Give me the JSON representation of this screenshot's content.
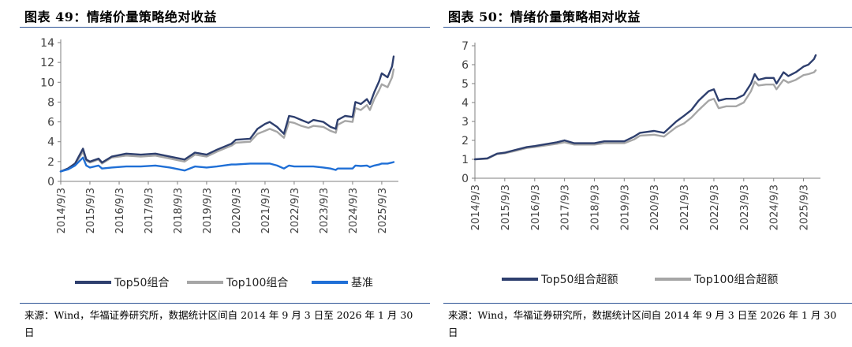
{
  "charts": [
    {
      "title": "图表 49：情绪价量策略绝对收益",
      "source": "来源：Wind，华福证券研究所，数据统计区间自 2014 年 9 月 3 日至 2026 年 1 月 30 日"
    },
    {
      "title": "图表 50：情绪价量策略相对收益",
      "source": "来源：Wind，华福证券研究所，数据统计区间自 2014 年 9 月 3 日至 2026 年 1 月 30 日"
    }
  ],
  "chart_data": [
    {
      "type": "line",
      "title": "图表 49：情绪价量策略绝对收益",
      "xlabel": "",
      "ylabel": "",
      "ylim": [
        0,
        14
      ],
      "yticks": [
        "0",
        "2",
        "4",
        "6",
        "8",
        "10",
        "12",
        "14"
      ],
      "xlim": [
        "2014-09-03",
        "2026-01-30"
      ],
      "xticks": [
        "2014/9/3",
        "2015/9/3",
        "2016/9/3",
        "2017/9/3",
        "2018/9/3",
        "2019/9/3",
        "2020/9/3",
        "2021/9/3",
        "2022/9/3",
        "2023/9/3",
        "2024/9/3",
        "2025/9/3"
      ],
      "grid": false,
      "legend": "bottom",
      "series": [
        {
          "name": "Top50组合",
          "color": "#2e3f6e",
          "points": [
            [
              "2014-09-03",
              1.0
            ],
            [
              "2014-12-01",
              1.3
            ],
            [
              "2015-03-01",
              1.8
            ],
            [
              "2015-06-08",
              3.3
            ],
            [
              "2015-07-20",
              2.2
            ],
            [
              "2015-09-03",
              2.0
            ],
            [
              "2015-12-20",
              2.3
            ],
            [
              "2016-02-01",
              1.9
            ],
            [
              "2016-06-01",
              2.5
            ],
            [
              "2016-12-01",
              2.8
            ],
            [
              "2017-06-01",
              2.7
            ],
            [
              "2017-12-01",
              2.8
            ],
            [
              "2018-06-01",
              2.5
            ],
            [
              "2018-12-01",
              2.2
            ],
            [
              "2019-04-10",
              2.9
            ],
            [
              "2019-09-03",
              2.7
            ],
            [
              "2020-01-10",
              3.2
            ],
            [
              "2020-07-10",
              3.8
            ],
            [
              "2020-09-03",
              4.2
            ],
            [
              "2021-03-01",
              4.3
            ],
            [
              "2021-06-01",
              5.3
            ],
            [
              "2021-09-03",
              5.8
            ],
            [
              "2021-11-01",
              6.0
            ],
            [
              "2022-02-01",
              5.5
            ],
            [
              "2022-04-27",
              4.8
            ],
            [
              "2022-07-01",
              6.6
            ],
            [
              "2022-09-03",
              6.5
            ],
            [
              "2022-12-01",
              6.2
            ],
            [
              "2023-03-01",
              5.9
            ],
            [
              "2023-05-01",
              6.2
            ],
            [
              "2023-09-03",
              6.0
            ],
            [
              "2023-12-01",
              5.5
            ],
            [
              "2024-02-05",
              5.3
            ],
            [
              "2024-03-01",
              6.2
            ],
            [
              "2024-06-01",
              6.6
            ],
            [
              "2024-09-03",
              6.5
            ],
            [
              "2024-10-08",
              8.0
            ],
            [
              "2024-12-15",
              7.8
            ],
            [
              "2025-03-01",
              8.3
            ],
            [
              "2025-04-08",
              7.8
            ],
            [
              "2025-06-01",
              9.0
            ],
            [
              "2025-08-01",
              10.1
            ],
            [
              "2025-09-03",
              10.9
            ],
            [
              "2025-11-15",
              10.5
            ],
            [
              "2026-01-10",
              11.6
            ],
            [
              "2026-01-30",
              12.6
            ]
          ]
        },
        {
          "name": "Top100组合",
          "color": "#a6a6a6",
          "points": [
            [
              "2014-09-03",
              1.0
            ],
            [
              "2014-12-01",
              1.25
            ],
            [
              "2015-03-01",
              1.7
            ],
            [
              "2015-06-08",
              3.0
            ],
            [
              "2015-07-20",
              2.1
            ],
            [
              "2015-09-03",
              1.9
            ],
            [
              "2015-12-20",
              2.2
            ],
            [
              "2016-02-01",
              1.8
            ],
            [
              "2016-06-01",
              2.4
            ],
            [
              "2016-12-01",
              2.6
            ],
            [
              "2017-06-01",
              2.5
            ],
            [
              "2017-12-01",
              2.6
            ],
            [
              "2018-06-01",
              2.3
            ],
            [
              "2018-12-01",
              2.0
            ],
            [
              "2019-04-10",
              2.7
            ],
            [
              "2019-09-03",
              2.5
            ],
            [
              "2020-01-10",
              3.0
            ],
            [
              "2020-07-10",
              3.6
            ],
            [
              "2020-09-03",
              3.9
            ],
            [
              "2021-03-01",
              4.0
            ],
            [
              "2021-06-01",
              4.8
            ],
            [
              "2021-09-03",
              5.1
            ],
            [
              "2021-11-01",
              5.3
            ],
            [
              "2022-02-01",
              5.0
            ],
            [
              "2022-04-27",
              4.4
            ],
            [
              "2022-07-01",
              6.0
            ],
            [
              "2022-09-03",
              5.9
            ],
            [
              "2022-12-01",
              5.6
            ],
            [
              "2023-03-01",
              5.4
            ],
            [
              "2023-05-01",
              5.6
            ],
            [
              "2023-09-03",
              5.5
            ],
            [
              "2023-12-01",
              5.1
            ],
            [
              "2024-02-05",
              4.9
            ],
            [
              "2024-03-01",
              5.7
            ],
            [
              "2024-06-01",
              6.1
            ],
            [
              "2024-09-03",
              6.0
            ],
            [
              "2024-10-08",
              7.4
            ],
            [
              "2024-12-15",
              7.2
            ],
            [
              "2025-03-01",
              7.7
            ],
            [
              "2025-04-08",
              7.2
            ],
            [
              "2025-06-01",
              8.3
            ],
            [
              "2025-08-01",
              9.2
            ],
            [
              "2025-09-03",
              9.8
            ],
            [
              "2025-11-15",
              9.5
            ],
            [
              "2026-01-10",
              10.5
            ],
            [
              "2026-01-30",
              11.3
            ]
          ]
        },
        {
          "name": "基准",
          "color": "#1f6fd6",
          "points": [
            [
              "2014-09-03",
              1.0
            ],
            [
              "2014-12-01",
              1.2
            ],
            [
              "2015-03-01",
              1.6
            ],
            [
              "2015-06-08",
              2.4
            ],
            [
              "2015-07-20",
              1.6
            ],
            [
              "2015-09-03",
              1.4
            ],
            [
              "2015-12-20",
              1.6
            ],
            [
              "2016-02-01",
              1.3
            ],
            [
              "2016-06-01",
              1.4
            ],
            [
              "2016-12-01",
              1.5
            ],
            [
              "2017-06-01",
              1.5
            ],
            [
              "2017-12-01",
              1.6
            ],
            [
              "2018-06-01",
              1.4
            ],
            [
              "2018-12-01",
              1.1
            ],
            [
              "2019-04-10",
              1.5
            ],
            [
              "2019-09-03",
              1.4
            ],
            [
              "2020-01-10",
              1.5
            ],
            [
              "2020-07-10",
              1.7
            ],
            [
              "2020-09-03",
              1.7
            ],
            [
              "2021-03-01",
              1.8
            ],
            [
              "2021-06-01",
              1.8
            ],
            [
              "2021-09-03",
              1.8
            ],
            [
              "2021-11-01",
              1.8
            ],
            [
              "2022-02-01",
              1.6
            ],
            [
              "2022-04-27",
              1.3
            ],
            [
              "2022-07-01",
              1.6
            ],
            [
              "2022-09-03",
              1.5
            ],
            [
              "2022-12-01",
              1.5
            ],
            [
              "2023-03-01",
              1.5
            ],
            [
              "2023-05-01",
              1.5
            ],
            [
              "2023-09-03",
              1.4
            ],
            [
              "2023-12-01",
              1.3
            ],
            [
              "2024-02-05",
              1.15
            ],
            [
              "2024-03-01",
              1.3
            ],
            [
              "2024-06-01",
              1.3
            ],
            [
              "2024-09-03",
              1.3
            ],
            [
              "2024-10-08",
              1.6
            ],
            [
              "2024-12-15",
              1.55
            ],
            [
              "2025-03-01",
              1.6
            ],
            [
              "2025-04-08",
              1.45
            ],
            [
              "2025-06-01",
              1.6
            ],
            [
              "2025-08-01",
              1.7
            ],
            [
              "2025-09-03",
              1.8
            ],
            [
              "2025-11-15",
              1.8
            ],
            [
              "2026-01-10",
              1.9
            ],
            [
              "2026-01-30",
              1.95
            ]
          ]
        }
      ]
    },
    {
      "type": "line",
      "title": "图表 50：情绪价量策略相对收益",
      "xlabel": "",
      "ylabel": "",
      "ylim": [
        0,
        7
      ],
      "yticks": [
        "0",
        "1",
        "2",
        "3",
        "4",
        "5",
        "6",
        "7"
      ],
      "xlim": [
        "2014-09-03",
        "2026-01-30"
      ],
      "xticks": [
        "2014/9/3",
        "2015/9/3",
        "2016/9/3",
        "2017/9/3",
        "2018/9/3",
        "2019/9/3",
        "2020/9/3",
        "2021/9/3",
        "2022/9/3",
        "2023/9/3",
        "2024/9/3",
        "2025/9/3"
      ],
      "grid": false,
      "legend": "bottom",
      "series": [
        {
          "name": "Top50组合超额",
          "color": "#2e3f6e",
          "points": [
            [
              "2014-09-03",
              1.0
            ],
            [
              "2015-02-01",
              1.05
            ],
            [
              "2015-06-01",
              1.3
            ],
            [
              "2015-09-03",
              1.35
            ],
            [
              "2016-01-15",
              1.5
            ],
            [
              "2016-06-01",
              1.65
            ],
            [
              "2016-09-03",
              1.7
            ],
            [
              "2017-06-01",
              1.9
            ],
            [
              "2017-09-03",
              2.0
            ],
            [
              "2018-01-01",
              1.85
            ],
            [
              "2018-09-03",
              1.85
            ],
            [
              "2019-01-01",
              1.95
            ],
            [
              "2019-09-03",
              1.95
            ],
            [
              "2020-01-01",
              2.2
            ],
            [
              "2020-03-15",
              2.4
            ],
            [
              "2020-09-03",
              2.5
            ],
            [
              "2021-01-01",
              2.4
            ],
            [
              "2021-06-01",
              3.0
            ],
            [
              "2021-09-03",
              3.3
            ],
            [
              "2021-12-01",
              3.6
            ],
            [
              "2022-03-01",
              4.1
            ],
            [
              "2022-07-01",
              4.6
            ],
            [
              "2022-09-03",
              4.7
            ],
            [
              "2022-11-01",
              4.1
            ],
            [
              "2023-02-01",
              4.2
            ],
            [
              "2023-06-01",
              4.2
            ],
            [
              "2023-09-03",
              4.4
            ],
            [
              "2023-12-01",
              5.0
            ],
            [
              "2024-01-15",
              5.5
            ],
            [
              "2024-03-01",
              5.2
            ],
            [
              "2024-06-01",
              5.3
            ],
            [
              "2024-09-03",
              5.3
            ],
            [
              "2024-10-08",
              5.0
            ],
            [
              "2025-01-01",
              5.6
            ],
            [
              "2025-03-01",
              5.4
            ],
            [
              "2025-06-01",
              5.6
            ],
            [
              "2025-09-03",
              5.9
            ],
            [
              "2025-11-01",
              6.0
            ],
            [
              "2026-01-10",
              6.3
            ],
            [
              "2026-01-30",
              6.5
            ]
          ]
        },
        {
          "name": "Top100组合超额",
          "color": "#a6a6a6",
          "points": [
            [
              "2014-09-03",
              1.0
            ],
            [
              "2015-02-01",
              1.03
            ],
            [
              "2015-06-01",
              1.28
            ],
            [
              "2015-09-03",
              1.32
            ],
            [
              "2016-01-15",
              1.45
            ],
            [
              "2016-06-01",
              1.6
            ],
            [
              "2016-09-03",
              1.65
            ],
            [
              "2017-06-01",
              1.82
            ],
            [
              "2017-09-03",
              1.9
            ],
            [
              "2018-01-01",
              1.78
            ],
            [
              "2018-09-03",
              1.78
            ],
            [
              "2019-01-01",
              1.85
            ],
            [
              "2019-09-03",
              1.85
            ],
            [
              "2020-01-01",
              2.05
            ],
            [
              "2020-03-15",
              2.25
            ],
            [
              "2020-09-03",
              2.3
            ],
            [
              "2021-01-01",
              2.2
            ],
            [
              "2021-06-01",
              2.7
            ],
            [
              "2021-09-03",
              2.9
            ],
            [
              "2021-12-01",
              3.2
            ],
            [
              "2022-03-01",
              3.6
            ],
            [
              "2022-07-01",
              4.1
            ],
            [
              "2022-09-03",
              4.2
            ],
            [
              "2022-11-01",
              3.7
            ],
            [
              "2023-02-01",
              3.8
            ],
            [
              "2023-06-01",
              3.8
            ],
            [
              "2023-09-03",
              4.0
            ],
            [
              "2023-12-01",
              4.6
            ],
            [
              "2024-01-15",
              5.1
            ],
            [
              "2024-03-01",
              4.9
            ],
            [
              "2024-06-01",
              4.95
            ],
            [
              "2024-09-03",
              4.95
            ],
            [
              "2024-10-08",
              4.7
            ],
            [
              "2025-01-01",
              5.2
            ],
            [
              "2025-03-01",
              5.05
            ],
            [
              "2025-06-01",
              5.2
            ],
            [
              "2025-09-03",
              5.45
            ],
            [
              "2025-11-01",
              5.5
            ],
            [
              "2026-01-10",
              5.6
            ],
            [
              "2026-01-30",
              5.7
            ]
          ]
        }
      ]
    }
  ]
}
